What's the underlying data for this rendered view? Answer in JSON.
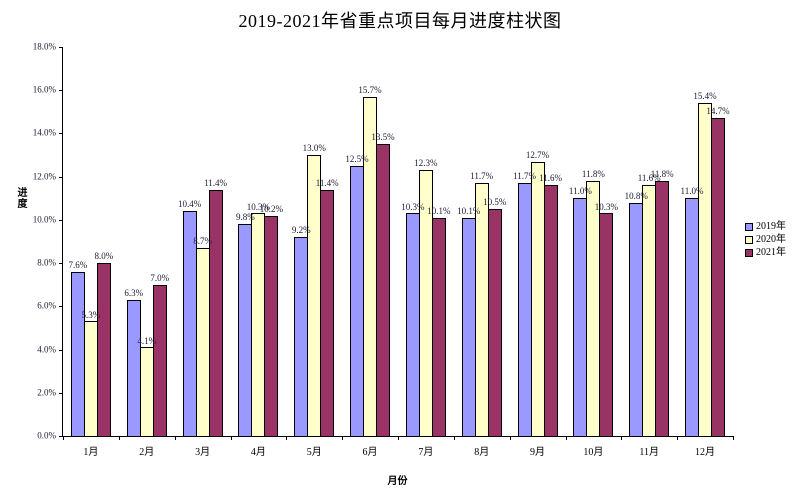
{
  "chart_data": {
    "type": "bar",
    "title": "2019-2021年省重点项目每月进度柱状图",
    "xlabel": "月份",
    "ylabel": "进度",
    "ylim": [
      0,
      18
    ],
    "ytick_step": 2,
    "ytick_labels": [
      "0.0%",
      "2.0%",
      "4.0%",
      "6.0%",
      "8.0%",
      "10.0%",
      "12.0%",
      "14.0%",
      "16.0%",
      "18.0%"
    ],
    "categories": [
      "1月",
      "2月",
      "3月",
      "4月",
      "5月",
      "6月",
      "7月",
      "8月",
      "9月",
      "10月",
      "11月",
      "12月"
    ],
    "series": [
      {
        "name": "2019年",
        "color": "#9999FF",
        "values": [
          7.6,
          6.3,
          10.4,
          9.8,
          9.2,
          12.5,
          10.3,
          10.1,
          11.7,
          11.0,
          10.8,
          11.0
        ]
      },
      {
        "name": "2020年",
        "color": "#FFFFCC",
        "values": [
          5.3,
          4.1,
          8.7,
          10.3,
          13.0,
          15.7,
          12.3,
          11.7,
          12.7,
          11.8,
          11.6,
          15.4
        ]
      },
      {
        "name": "2021年",
        "color": "#993366",
        "values": [
          8.0,
          7.0,
          11.4,
          10.2,
          11.4,
          13.5,
          10.1,
          10.5,
          11.6,
          10.3,
          11.8,
          14.7
        ]
      }
    ],
    "grid": false,
    "legend_position": "right",
    "background": "#FFFFFF",
    "axis_color": "#000000",
    "value_suffix": "%"
  }
}
